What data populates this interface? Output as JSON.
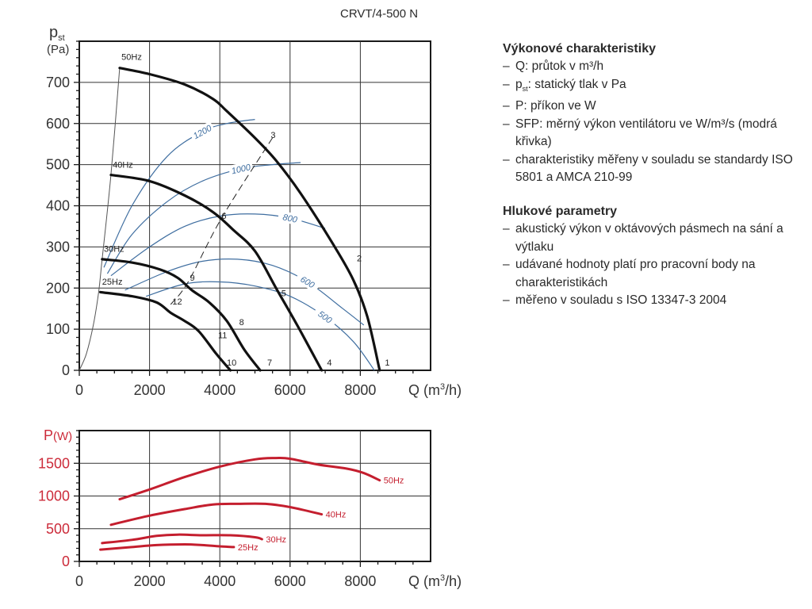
{
  "model_title": "CRVT/4-500 N",
  "chart_data": [
    {
      "type": "line",
      "title": "CRVT/4-500 N",
      "ylabel": "p_st (Pa)",
      "ylabel_main": "p",
      "ylabel_sub": "st",
      "ylabel_unit": "(Pa)",
      "xlabel": "Q (m³/h)",
      "xlim": [
        0,
        10000
      ],
      "ylim": [
        0,
        800
      ],
      "xticks": [
        0,
        2000,
        4000,
        6000,
        8000
      ],
      "yticks": [
        0,
        100,
        200,
        300,
        400,
        500,
        600,
        700
      ],
      "xtick_labels": [
        "0",
        "2000",
        "4000",
        "6000",
        "8000"
      ],
      "ytick_labels": [
        "0",
        "100",
        "200",
        "300",
        "400",
        "500",
        "600",
        "700"
      ],
      "grid": true,
      "series": [
        {
          "name": "50Hz",
          "color": "#111111",
          "x": [
            1150,
            2000,
            3000,
            3800,
            4200,
            5000,
            5600,
            6300,
            7200,
            7800,
            8200,
            8550
          ],
          "y": [
            735,
            720,
            695,
            660,
            630,
            565,
            510,
            430,
            310,
            220,
            130,
            0
          ]
        },
        {
          "name": "40Hz",
          "color": "#111111",
          "x": [
            900,
            2000,
            3000,
            3800,
            4400,
            5000,
            5600,
            6200,
            6900
          ],
          "y": [
            475,
            460,
            425,
            385,
            340,
            290,
            200,
            110,
            0
          ]
        },
        {
          "name": "30Hz",
          "color": "#111111",
          "x": [
            650,
            1500,
            2300,
            2800,
            3200,
            3700,
            4200,
            4700,
            5150
          ],
          "y": [
            270,
            262,
            245,
            225,
            195,
            165,
            120,
            50,
            0
          ]
        },
        {
          "name": "25Hz",
          "color": "#111111",
          "x": [
            600,
            1500,
            2200,
            2600,
            3000,
            3400,
            3900,
            4300
          ],
          "y": [
            190,
            180,
            165,
            140,
            120,
            95,
            40,
            0
          ]
        }
      ],
      "sfp_curves": [
        {
          "label": "1200",
          "color": "#3f6ea0",
          "x": [
            700,
            1500,
            2500,
            3500,
            4200,
            5000
          ],
          "y": [
            250,
            400,
            520,
            580,
            600,
            610
          ]
        },
        {
          "label": "1000",
          "color": "#3f6ea0",
          "x": [
            800,
            1500,
            2500,
            3500,
            4600,
            5500,
            6300
          ],
          "y": [
            235,
            330,
            410,
            460,
            490,
            500,
            505
          ]
        },
        {
          "label": "800",
          "color": "#3f6ea0",
          "x": [
            900,
            2000,
            3000,
            4000,
            5000,
            6000,
            7000
          ],
          "y": [
            230,
            300,
            350,
            375,
            380,
            370,
            345
          ]
        },
        {
          "label": "600",
          "color": "#3f6ea0",
          "x": [
            1300,
            2500,
            3500,
            4500,
            5500,
            6500,
            7500,
            8100
          ],
          "y": [
            195,
            240,
            265,
            270,
            255,
            215,
            150,
            110
          ]
        },
        {
          "label": "500",
          "color": "#3f6ea0",
          "x": [
            1900,
            3000,
            4000,
            5000,
            6000,
            7000,
            7800,
            8400
          ],
          "y": [
            180,
            210,
            215,
            205,
            180,
            130,
            70,
            0
          ]
        }
      ],
      "system_curve": {
        "name": "50Hz-limit",
        "color": "#555555",
        "x": [
          0,
          200,
          400,
          550,
          650,
          900,
          1150
        ],
        "y": [
          0,
          40,
          110,
          190,
          270,
          475,
          735
        ]
      },
      "dashed_curve": {
        "color": "#222222",
        "x": [
          2600,
          3100,
          4050,
          5500
        ],
        "y": [
          160,
          215,
          370,
          565
        ]
      },
      "point_labels": [
        {
          "label": "1",
          "x": 8700,
          "y": 12
        },
        {
          "label": "2",
          "x": 7900,
          "y": 265
        },
        {
          "label": "3",
          "x": 5450,
          "y": 565
        },
        {
          "label": "4",
          "x": 7050,
          "y": 12
        },
        {
          "label": "5",
          "x": 5750,
          "y": 180
        },
        {
          "label": "6",
          "x": 4050,
          "y": 368
        },
        {
          "label": "7",
          "x": 5350,
          "y": 12
        },
        {
          "label": "8",
          "x": 4550,
          "y": 110
        },
        {
          "label": "9",
          "x": 3150,
          "y": 218
        },
        {
          "label": "10",
          "x": 4200,
          "y": 12
        },
        {
          "label": "11",
          "x": 3950,
          "y": 78
        },
        {
          "label": "12",
          "x": 2650,
          "y": 160
        }
      ],
      "series_labels": [
        {
          "label": "50Hz",
          "x": 1200,
          "y": 755
        },
        {
          "label": "40Hz",
          "x": 950,
          "y": 493
        },
        {
          "label": "30Hz",
          "x": 700,
          "y": 288
        },
        {
          "label": "25Hz",
          "x": 650,
          "y": 208
        }
      ]
    },
    {
      "type": "line",
      "ylabel": "P(W)",
      "ylabel_main": "P",
      "ylabel_unit": "(W)",
      "xlabel": "Q (m³/h)",
      "xlim": [
        0,
        10000
      ],
      "ylim": [
        0,
        2000
      ],
      "xticks": [
        0,
        2000,
        4000,
        6000,
        8000
      ],
      "yticks": [
        0,
        500,
        1000,
        1500
      ],
      "xtick_labels": [
        "0",
        "2000",
        "4000",
        "6000",
        "8000"
      ],
      "ytick_labels": [
        "0",
        "500",
        "1000",
        "1500"
      ],
      "grid": true,
      "axis_label_color": "#cc2b3a",
      "series": [
        {
          "name": "50Hz",
          "color": "#c41e2e",
          "x": [
            1150,
            2000,
            3000,
            4000,
            5000,
            5600,
            6000,
            6800,
            7600,
            8100,
            8550
          ],
          "y": [
            950,
            1100,
            1290,
            1450,
            1560,
            1580,
            1570,
            1480,
            1420,
            1350,
            1240
          ]
        },
        {
          "name": "40Hz",
          "color": "#c41e2e",
          "x": [
            900,
            2000,
            3000,
            3800,
            4500,
            5300,
            6000,
            6900
          ],
          "y": [
            560,
            700,
            800,
            870,
            880,
            880,
            830,
            720
          ]
        },
        {
          "name": "30Hz",
          "color": "#c41e2e",
          "x": [
            650,
            1500,
            2200,
            2800,
            3500,
            4300,
            5000,
            5200
          ],
          "y": [
            280,
            330,
            390,
            410,
            400,
            400,
            370,
            340
          ]
        },
        {
          "name": "25Hz",
          "color": "#c41e2e",
          "x": [
            600,
            1500,
            2200,
            3000,
            3500,
            4000,
            4400
          ],
          "y": [
            180,
            220,
            250,
            260,
            250,
            230,
            220
          ]
        }
      ]
    }
  ],
  "sections": [
    {
      "heading": "Výkonové charakteristiky",
      "items": [
        "Q: průtok v m³/h",
        "pst: statický tlak v Pa",
        "P: příkon ve W",
        "SFP: měrný výkon ventilátoru ve W/m³/s (modrá křivka)",
        "charakteristiky měřeny v souladu se standardy ISO 5801 a AMCA 210-99"
      ]
    },
    {
      "heading": "Hlukové parametry",
      "items": [
        "akustický výkon v oktávových pásmech na sání a výtlaku",
        "udávané hodnoty platí pro pracovní body na charakteristikách",
        "měřeno v souladu s ISO 13347-3 2004"
      ]
    }
  ]
}
